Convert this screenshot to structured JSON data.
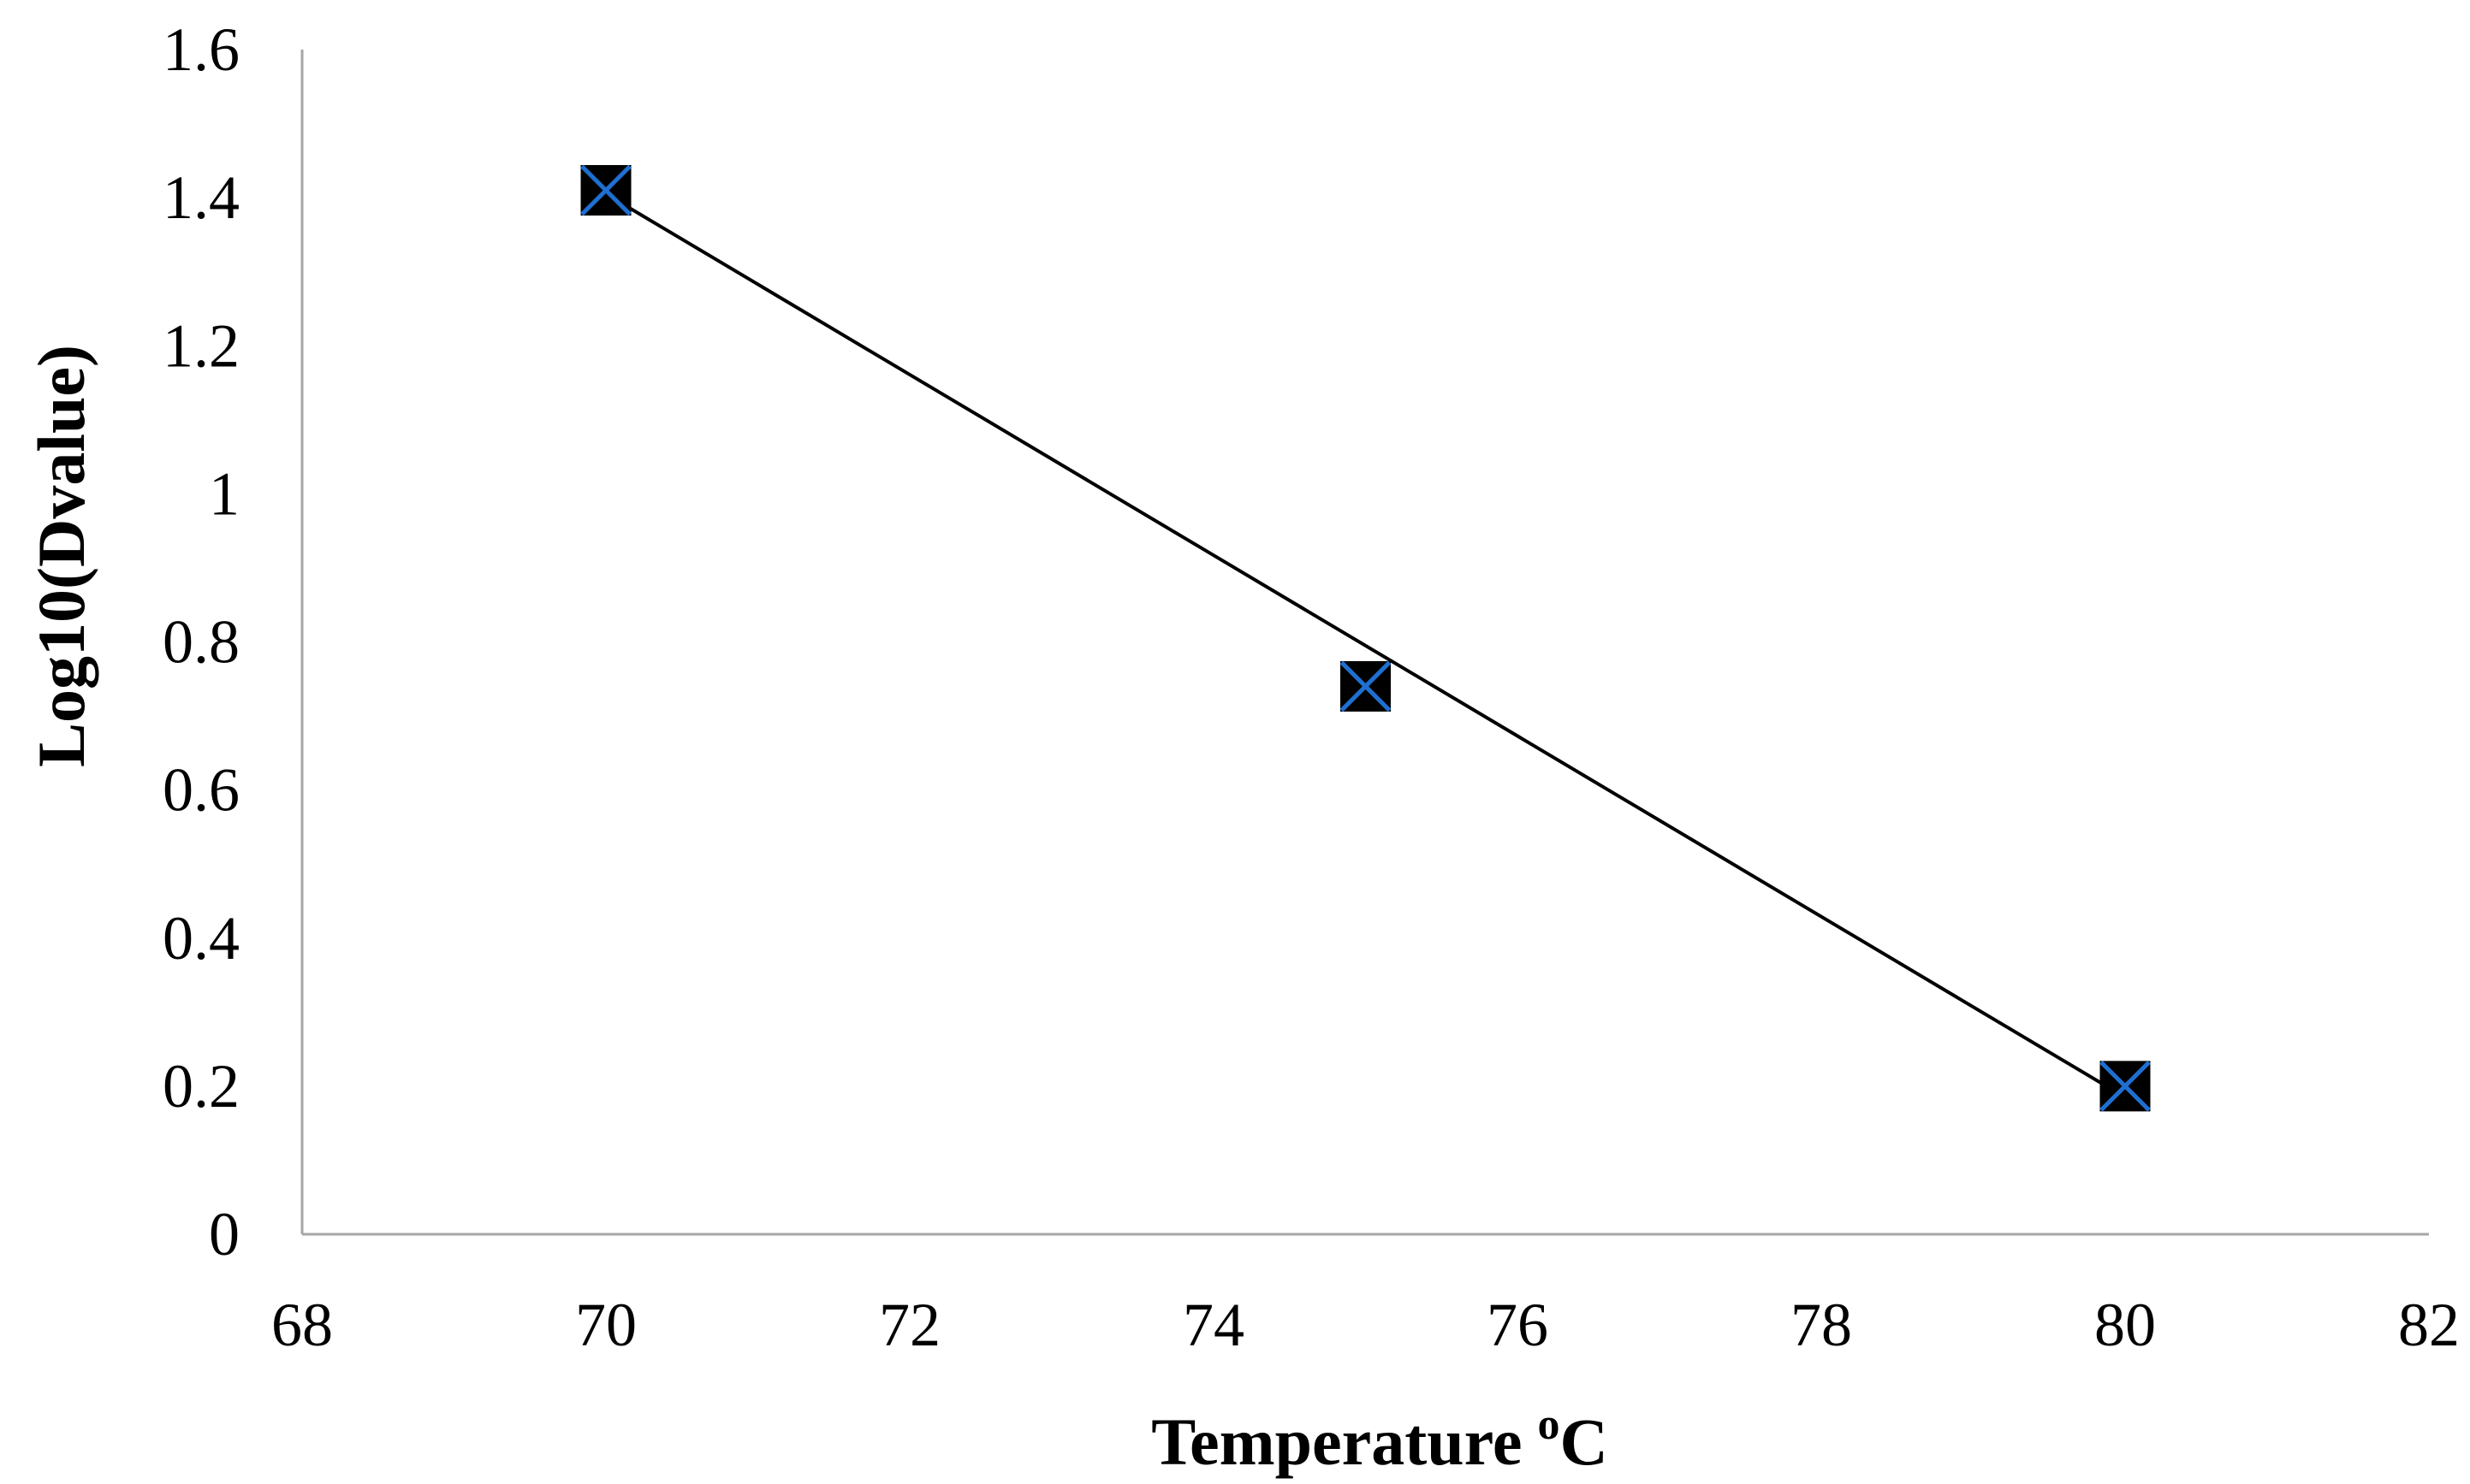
{
  "chart_data": {
    "type": "scatter",
    "title": "",
    "xlabel": "Temperature",
    "xlabel_superscript": "o",
    "xlabel_unit": "C",
    "ylabel": "Log10(Dvalue)",
    "xlim": [
      68,
      82
    ],
    "ylim": [
      0,
      1.6
    ],
    "x_ticks": [
      68,
      70,
      72,
      74,
      76,
      78,
      80,
      82
    ],
    "y_ticks": [
      0,
      0.2,
      0.4,
      0.6,
      0.8,
      1,
      1.2,
      1.4,
      1.6
    ],
    "x_tick_labels": [
      "68",
      "70",
      "72",
      "74",
      "76",
      "78",
      "80",
      "82"
    ],
    "y_tick_labels": [
      "0",
      "0.2",
      "0.4",
      "0.6",
      "0.8",
      "1",
      "1.2",
      "1.4",
      "1.6"
    ],
    "grid": false,
    "legend": "none",
    "series": [
      {
        "marker": "square-with-x",
        "marker_fill": "#000000",
        "marker_cross_color": "#1f6fd1",
        "points": [
          {
            "x": 70,
            "y": 1.41
          },
          {
            "x": 75,
            "y": 0.74
          },
          {
            "x": 80,
            "y": 0.2
          }
        ]
      }
    ],
    "trendline": {
      "type": "linear",
      "color": "#000000",
      "from": {
        "x": 70,
        "y": 1.405
      },
      "to": {
        "x": 80,
        "y": 0.185
      }
    }
  }
}
